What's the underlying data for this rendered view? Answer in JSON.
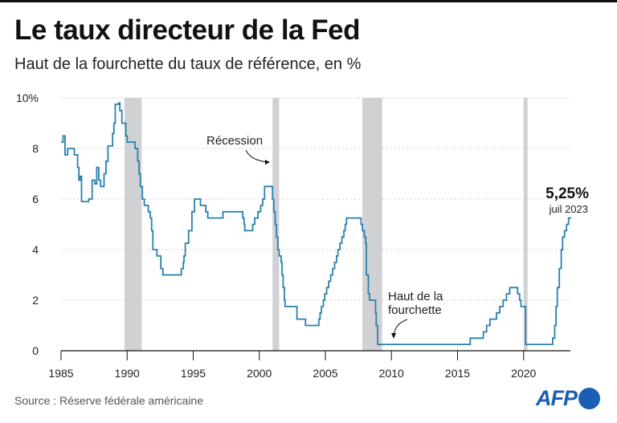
{
  "header": {
    "title": "Le taux directeur de la Fed",
    "subtitle": "Haut de la fourchette du taux de référence, en %"
  },
  "footer": {
    "source": "Source : Réserve fédérale américaine",
    "logo": "AFP"
  },
  "colors": {
    "line": "#2a7fae",
    "recession": "#d0d1d3",
    "grid": "#cccccc",
    "logo": "#1a5fb4"
  },
  "chart_data": {
    "type": "line",
    "title": "Le taux directeur de la Fed",
    "subtitle": "Haut de la fourchette du taux de référence, en %",
    "xlim": [
      1985,
      2023.6
    ],
    "ylim": [
      0,
      10
    ],
    "x_ticks": [
      "1985",
      "1990",
      "1995",
      "2000",
      "2005",
      "2010",
      "2015",
      "2020"
    ],
    "y_ticks": [
      "0",
      "2",
      "4",
      "6",
      "8",
      "10%"
    ],
    "grid": "horizontal dotted",
    "step": true,
    "recessions": [
      [
        1989.8,
        1991.1
      ],
      [
        2001.0,
        2001.5
      ],
      [
        2007.8,
        2009.3
      ],
      [
        2020.0,
        2020.3
      ]
    ],
    "annotations": {
      "recession": "Récession",
      "upper": "Haut de la fourchette",
      "last_value": "5,25%",
      "last_date": "juil 2023"
    },
    "series": [
      {
        "values": [
          [
            1985.0,
            8.25
          ],
          [
            1985.15,
            8.5
          ],
          [
            1985.3,
            7.75
          ],
          [
            1985.5,
            8.0
          ],
          [
            1986.0,
            7.75
          ],
          [
            1986.25,
            7.25
          ],
          [
            1986.35,
            6.75
          ],
          [
            1986.45,
            6.9
          ],
          [
            1986.55,
            5.9
          ],
          [
            1987.1,
            6.0
          ],
          [
            1987.35,
            6.75
          ],
          [
            1987.55,
            6.6
          ],
          [
            1987.7,
            7.25
          ],
          [
            1987.85,
            6.75
          ],
          [
            1988.0,
            6.5
          ],
          [
            1988.25,
            7.0
          ],
          [
            1988.4,
            7.5
          ],
          [
            1988.55,
            8.1
          ],
          [
            1988.9,
            8.6
          ],
          [
            1989.0,
            9.0
          ],
          [
            1989.1,
            9.75
          ],
          [
            1989.35,
            9.8
          ],
          [
            1989.45,
            9.5
          ],
          [
            1989.6,
            9.0
          ],
          [
            1989.9,
            8.5
          ],
          [
            1990.0,
            8.25
          ],
          [
            1990.6,
            8.0
          ],
          [
            1990.8,
            7.5
          ],
          [
            1990.9,
            7.0
          ],
          [
            1991.0,
            6.5
          ],
          [
            1991.15,
            6.0
          ],
          [
            1991.3,
            5.75
          ],
          [
            1991.6,
            5.5
          ],
          [
            1991.75,
            5.25
          ],
          [
            1991.85,
            4.75
          ],
          [
            1991.95,
            4.0
          ],
          [
            1992.25,
            3.75
          ],
          [
            1992.55,
            3.25
          ],
          [
            1992.7,
            3.0
          ],
          [
            1994.1,
            3.25
          ],
          [
            1994.25,
            3.5
          ],
          [
            1994.3,
            3.75
          ],
          [
            1994.4,
            4.25
          ],
          [
            1994.65,
            4.75
          ],
          [
            1994.9,
            5.5
          ],
          [
            1995.1,
            6.0
          ],
          [
            1995.55,
            5.75
          ],
          [
            1995.95,
            5.5
          ],
          [
            1996.1,
            5.25
          ],
          [
            1997.25,
            5.5
          ],
          [
            1998.75,
            5.25
          ],
          [
            1998.85,
            5.0
          ],
          [
            1998.9,
            4.75
          ],
          [
            1999.5,
            5.0
          ],
          [
            1999.65,
            5.25
          ],
          [
            1999.9,
            5.5
          ],
          [
            2000.1,
            5.75
          ],
          [
            2000.25,
            6.0
          ],
          [
            2000.4,
            6.5
          ],
          [
            2001.0,
            6.0
          ],
          [
            2001.1,
            5.5
          ],
          [
            2001.2,
            5.0
          ],
          [
            2001.3,
            4.5
          ],
          [
            2001.4,
            4.0
          ],
          [
            2001.5,
            3.75
          ],
          [
            2001.65,
            3.5
          ],
          [
            2001.72,
            3.0
          ],
          [
            2001.8,
            2.5
          ],
          [
            2001.9,
            2.0
          ],
          [
            2001.95,
            1.75
          ],
          [
            2002.85,
            1.25
          ],
          [
            2003.5,
            1.0
          ],
          [
            2004.5,
            1.25
          ],
          [
            2004.6,
            1.5
          ],
          [
            2004.7,
            1.75
          ],
          [
            2004.85,
            2.0
          ],
          [
            2004.95,
            2.25
          ],
          [
            2005.1,
            2.5
          ],
          [
            2005.25,
            2.75
          ],
          [
            2005.4,
            3.0
          ],
          [
            2005.55,
            3.25
          ],
          [
            2005.7,
            3.5
          ],
          [
            2005.85,
            3.75
          ],
          [
            2005.95,
            4.0
          ],
          [
            2006.1,
            4.25
          ],
          [
            2006.25,
            4.5
          ],
          [
            2006.4,
            4.75
          ],
          [
            2006.5,
            5.0
          ],
          [
            2006.6,
            5.25
          ],
          [
            2007.7,
            5.0
          ],
          [
            2007.8,
            4.75
          ],
          [
            2007.95,
            4.5
          ],
          [
            2008.05,
            4.25
          ],
          [
            2008.1,
            3.0
          ],
          [
            2008.25,
            2.25
          ],
          [
            2008.35,
            2.0
          ],
          [
            2008.8,
            1.5
          ],
          [
            2008.85,
            1.0
          ],
          [
            2008.96,
            0.25
          ],
          [
            2015.96,
            0.5
          ],
          [
            2016.95,
            0.75
          ],
          [
            2017.2,
            1.0
          ],
          [
            2017.45,
            1.25
          ],
          [
            2017.95,
            1.5
          ],
          [
            2018.2,
            1.75
          ],
          [
            2018.45,
            2.0
          ],
          [
            2018.7,
            2.25
          ],
          [
            2018.95,
            2.5
          ],
          [
            2019.55,
            2.25
          ],
          [
            2019.7,
            2.0
          ],
          [
            2019.8,
            1.75
          ],
          [
            2020.15,
            0.25
          ],
          [
            2022.2,
            0.5
          ],
          [
            2022.35,
            1.0
          ],
          [
            2022.45,
            1.75
          ],
          [
            2022.55,
            2.5
          ],
          [
            2022.7,
            3.25
          ],
          [
            2022.85,
            4.0
          ],
          [
            2022.95,
            4.5
          ],
          [
            2023.1,
            4.75
          ],
          [
            2023.25,
            5.0
          ],
          [
            2023.4,
            5.25
          ],
          [
            2023.6,
            5.25
          ]
        ]
      }
    ]
  }
}
